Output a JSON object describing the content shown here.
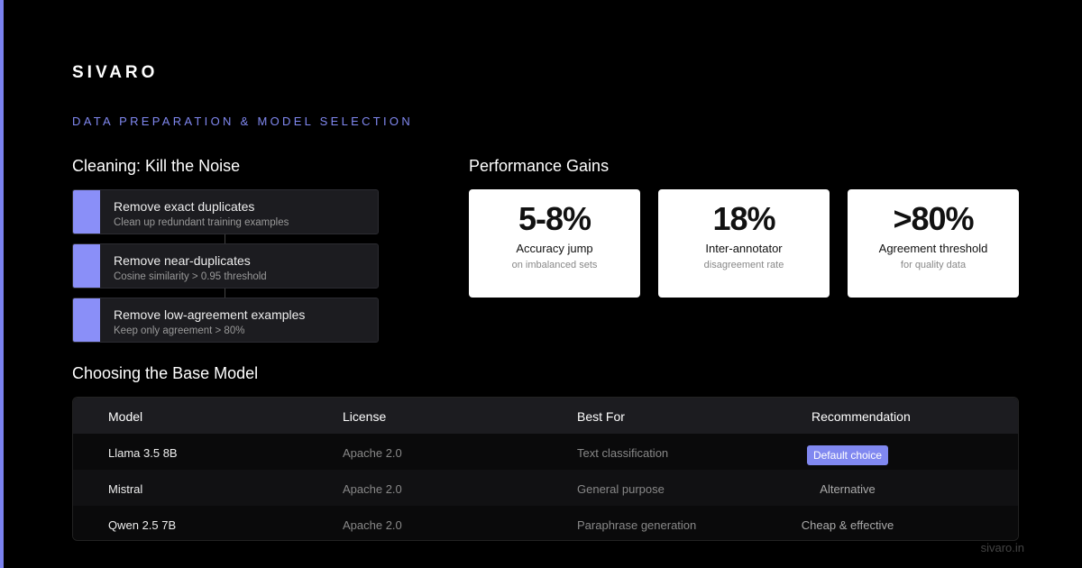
{
  "brand": "SIVARO",
  "subtitle": "DATA PREPARATION & MODEL SELECTION",
  "cleaning": {
    "title": "Cleaning: Kill the Noise",
    "steps": [
      {
        "title": "Remove exact duplicates",
        "description": "Clean up redundant training examples"
      },
      {
        "title": "Remove near-duplicates",
        "description": "Cosine similarity > 0.95 threshold"
      },
      {
        "title": "Remove low-agreement examples",
        "description": "Keep only agreement > 80%"
      }
    ]
  },
  "performance": {
    "title": "Performance Gains",
    "stats": [
      {
        "value": "5-8%",
        "label": "Accuracy jump",
        "note": "on imbalanced sets"
      },
      {
        "value": "18%",
        "label": "Inter-annotator",
        "note": "disagreement rate"
      },
      {
        "value": ">80%",
        "label": "Agreement threshold",
        "note": "for quality data"
      }
    ]
  },
  "models": {
    "title": "Choosing the Base Model",
    "columns": [
      "Model",
      "License",
      "Best For",
      "Recommendation"
    ],
    "rows": [
      [
        "Llama 3.5 8B",
        "Apache 2.0",
        "Text classification",
        "Default choice"
      ],
      [
        "Mistral",
        "Apache 2.0",
        "General purpose",
        "Alternative"
      ],
      [
        "Qwen 2.5 7B",
        "Apache 2.0",
        "Paraphrase generation",
        "Cheap & effective"
      ]
    ]
  },
  "footer": "sivaro.in"
}
